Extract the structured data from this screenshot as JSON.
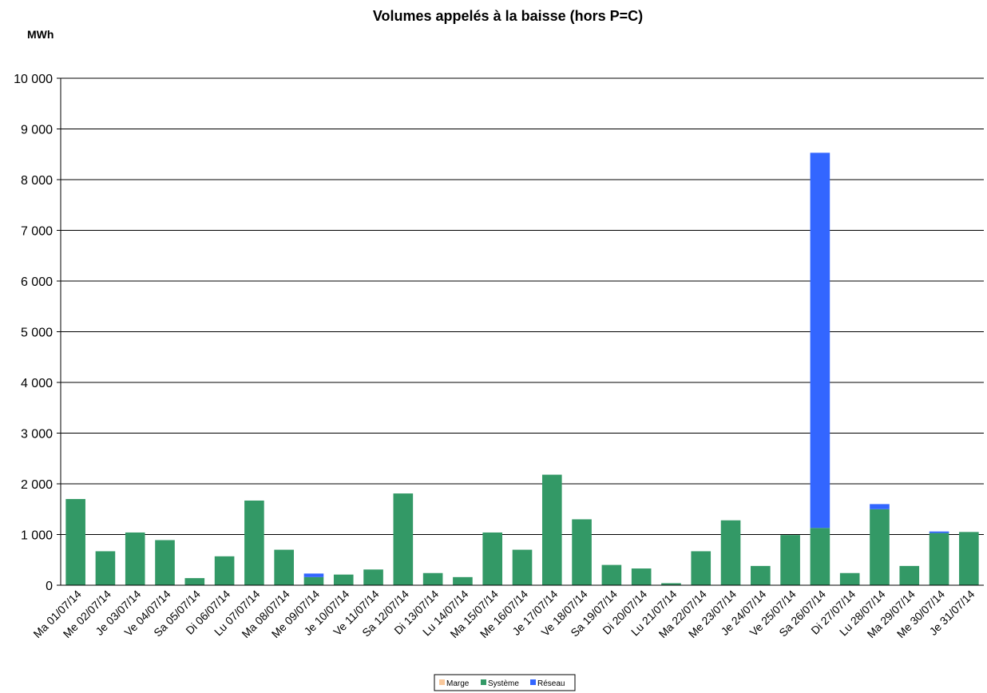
{
  "chart_data": {
    "type": "bar",
    "stacked": true,
    "title": "Volumes appelés à la baisse (hors P=C)",
    "ylabel": "MWh",
    "xlabel": "",
    "ylim": [
      0,
      10000
    ],
    "yticks": [
      0,
      1000,
      2000,
      3000,
      4000,
      5000,
      6000,
      7000,
      8000,
      9000,
      10000
    ],
    "ytick_labels": [
      "0",
      "1 000",
      "2 000",
      "3 000",
      "4 000",
      "5 000",
      "6 000",
      "7 000",
      "8 000",
      "9 000",
      "10 000"
    ],
    "grid": true,
    "legend_position": "bottom",
    "categories": [
      "Ma 01/07/14",
      "Me 02/07/14",
      "Je 03/07/14",
      "Ve 04/07/14",
      "Sa 05/07/14",
      "Di 06/07/14",
      "Lu 07/07/14",
      "Ma 08/07/14",
      "Me 09/07/14",
      "Je 10/07/14",
      "Ve 11/07/14",
      "Sa 12/07/14",
      "Di 13/07/14",
      "Lu 14/07/14",
      "Ma 15/07/14",
      "Me 16/07/14",
      "Je 17/07/14",
      "Ve 18/07/14",
      "Sa 19/07/14",
      "Di 20/07/14",
      "Lu 21/07/14",
      "Ma 22/07/14",
      "Me 23/07/14",
      "Je 24/07/14",
      "Ve 25/07/14",
      "Sa 26/07/14",
      "Di 27/07/14",
      "Lu 28/07/14",
      "Ma 29/07/14",
      "Me 30/07/14",
      "Je 31/07/14"
    ],
    "series": [
      {
        "name": "Marge",
        "color": "#f9c89b",
        "values": [
          0,
          0,
          0,
          0,
          0,
          0,
          0,
          0,
          0,
          0,
          0,
          0,
          0,
          0,
          0,
          0,
          0,
          0,
          0,
          0,
          0,
          0,
          0,
          0,
          0,
          0,
          0,
          0,
          0,
          0,
          0
        ]
      },
      {
        "name": "Système",
        "color": "#339966",
        "values": [
          1700,
          670,
          1040,
          890,
          140,
          570,
          1670,
          700,
          160,
          210,
          310,
          1810,
          240,
          160,
          1040,
          700,
          2180,
          1300,
          400,
          330,
          40,
          670,
          1280,
          380,
          990,
          1130,
          240,
          1500,
          380,
          1030,
          1050
        ]
      },
      {
        "name": "Réseau",
        "color": "#3366ff",
        "values": [
          0,
          0,
          0,
          0,
          0,
          0,
          0,
          0,
          70,
          0,
          0,
          0,
          0,
          0,
          0,
          0,
          0,
          0,
          0,
          0,
          0,
          0,
          0,
          0,
          0,
          7400,
          0,
          100,
          0,
          30,
          0
        ]
      }
    ]
  }
}
